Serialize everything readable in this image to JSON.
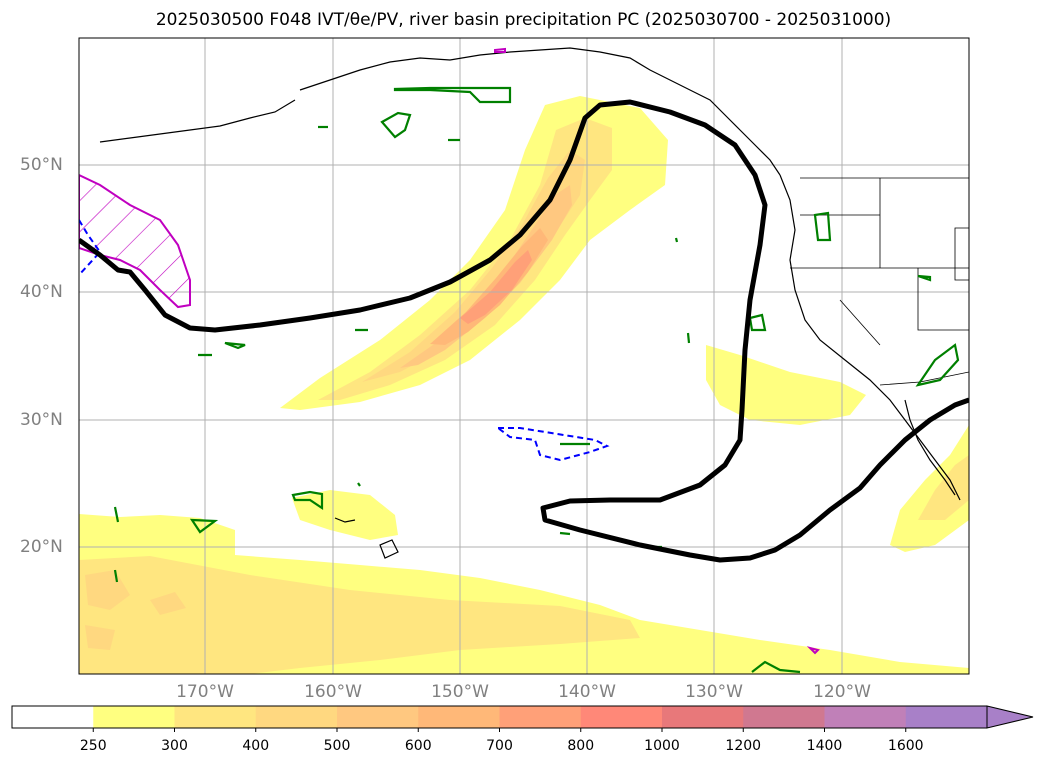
{
  "title": "2025030500 F048 IVT/θe/PV, river basin precipitation PC (2025030700 - 2025031000)",
  "lat_labels": [
    "50°N",
    "40°N",
    "30°N",
    "20°N"
  ],
  "lon_labels": [
    "170°W",
    "160°W",
    "150°W",
    "140°W",
    "130°W",
    "120°W"
  ],
  "colorbar": {
    "ticks": [
      "250",
      "300",
      "400",
      "500",
      "600",
      "700",
      "800",
      "1000",
      "1200",
      "1400",
      "1600"
    ],
    "colors": [
      "#ffffff",
      "#ffff80",
      "#ffe680",
      "#ffd880",
      "#ffc880",
      "#ffb878",
      "#ffa078",
      "#ff8878",
      "#e8787a",
      "#d07890",
      "#c080b8",
      "#a880c8"
    ],
    "extend": "max"
  },
  "contour_colors": {
    "pv": "#008000",
    "theta_e": "#000000",
    "high_pv": "#c000c0",
    "negative": "#0000ff"
  }
}
